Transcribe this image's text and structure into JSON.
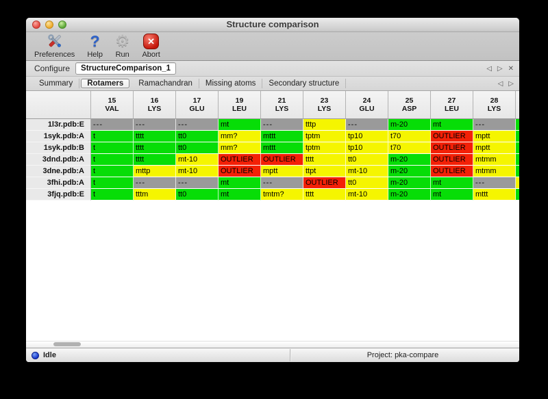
{
  "window": {
    "title": "Structure comparison"
  },
  "toolbar": {
    "items": [
      {
        "label": "Preferences",
        "icon": "tools-icon"
      },
      {
        "label": "Help",
        "icon": "help-icon"
      },
      {
        "label": "Run",
        "icon": "gear-icon"
      },
      {
        "label": "Abort",
        "icon": "abort-icon"
      }
    ]
  },
  "icons": {
    "back": "◁",
    "forward": "▷",
    "close": "✕",
    "gear": "⚙",
    "help": "?",
    "abort_x": "✕"
  },
  "configure": {
    "label": "Configure",
    "value": "StructureComparison_1"
  },
  "tabs": {
    "selected": "Rotamers",
    "items": [
      {
        "label": "Summary"
      },
      {
        "label": "Rotamers"
      },
      {
        "label": "Ramachandran"
      },
      {
        "label": "Missing atoms"
      },
      {
        "label": "Secondary structure"
      }
    ]
  },
  "colors": {
    "ok": "#07dd07",
    "warn": "#f5f500",
    "out": "#f32007",
    "na": "#9a9a9a"
  },
  "table": {
    "columns": [
      {
        "num": "15",
        "res": "VAL"
      },
      {
        "num": "16",
        "res": "LYS"
      },
      {
        "num": "17",
        "res": "GLU"
      },
      {
        "num": "19",
        "res": "LEU"
      },
      {
        "num": "21",
        "res": "LYS"
      },
      {
        "num": "23",
        "res": "LYS"
      },
      {
        "num": "24",
        "res": "GLU"
      },
      {
        "num": "25",
        "res": "ASP"
      },
      {
        "num": "27",
        "res": "LEU"
      },
      {
        "num": "28",
        "res": "LYS"
      }
    ],
    "rows": [
      {
        "name": "1l3r.pdb:E",
        "cells": [
          [
            "---",
            "na"
          ],
          [
            "---",
            "na"
          ],
          [
            "---",
            "na"
          ],
          [
            "mt",
            "ok"
          ],
          [
            "---",
            "na"
          ],
          [
            "tttp",
            "warn"
          ],
          [
            "---",
            "na"
          ],
          [
            "m-20",
            "ok"
          ],
          [
            "mt",
            "ok"
          ],
          [
            "---",
            "na"
          ]
        ],
        "extra": "ok"
      },
      {
        "name": "1syk.pdb:A",
        "cells": [
          [
            "t",
            "ok"
          ],
          [
            "tttt",
            "ok"
          ],
          [
            "tt0",
            "ok"
          ],
          [
            "mm?",
            "warn"
          ],
          [
            "mttt",
            "ok"
          ],
          [
            "tptm",
            "warn"
          ],
          [
            "tp10",
            "warn"
          ],
          [
            "t70",
            "warn"
          ],
          [
            "OUTLIER",
            "out"
          ],
          [
            "mptt",
            "warn"
          ]
        ],
        "extra": "ok"
      },
      {
        "name": "1syk.pdb:B",
        "cells": [
          [
            "t",
            "ok"
          ],
          [
            "tttt",
            "ok"
          ],
          [
            "tt0",
            "ok"
          ],
          [
            "mm?",
            "warn"
          ],
          [
            "mttt",
            "ok"
          ],
          [
            "tptm",
            "warn"
          ],
          [
            "tp10",
            "warn"
          ],
          [
            "t70",
            "warn"
          ],
          [
            "OUTLIER",
            "out"
          ],
          [
            "mptt",
            "warn"
          ]
        ],
        "extra": "ok"
      },
      {
        "name": "3dnd.pdb:A",
        "cells": [
          [
            "t",
            "ok"
          ],
          [
            "tttt",
            "ok"
          ],
          [
            "mt-10",
            "warn"
          ],
          [
            "OUTLIER",
            "out"
          ],
          [
            "OUTLIER",
            "out"
          ],
          [
            "tttt",
            "warn"
          ],
          [
            "tt0",
            "warn"
          ],
          [
            "m-20",
            "ok"
          ],
          [
            "OUTLIER",
            "out"
          ],
          [
            "mtmm",
            "warn"
          ]
        ],
        "extra": "ok"
      },
      {
        "name": "3dne.pdb:A",
        "cells": [
          [
            "t",
            "ok"
          ],
          [
            "mttp",
            "warn"
          ],
          [
            "mt-10",
            "warn"
          ],
          [
            "OUTLIER",
            "out"
          ],
          [
            "mptt",
            "warn"
          ],
          [
            "ttpt",
            "warn"
          ],
          [
            "mt-10",
            "warn"
          ],
          [
            "m-20",
            "ok"
          ],
          [
            "OUTLIER",
            "out"
          ],
          [
            "mtmm",
            "warn"
          ]
        ],
        "extra": "ok"
      },
      {
        "name": "3fhi.pdb:A",
        "cells": [
          [
            "t",
            "ok"
          ],
          [
            "---",
            "na"
          ],
          [
            "---",
            "na"
          ],
          [
            "mt",
            "ok"
          ],
          [
            "---",
            "na"
          ],
          [
            "OUTLIER",
            "out"
          ],
          [
            "tt0",
            "warn"
          ],
          [
            "m-20",
            "ok"
          ],
          [
            "mt",
            "ok"
          ],
          [
            "---",
            "na"
          ]
        ],
        "extra": "warn"
      },
      {
        "name": "3fjq.pdb:E",
        "cells": [
          [
            "t",
            "ok"
          ],
          [
            "tttm",
            "warn"
          ],
          [
            "tt0",
            "ok"
          ],
          [
            "mt",
            "ok"
          ],
          [
            "tmtm?",
            "warn"
          ],
          [
            "tttt",
            "warn"
          ],
          [
            "mt-10",
            "warn"
          ],
          [
            "m-20",
            "ok"
          ],
          [
            "mt",
            "ok"
          ],
          [
            "mttt",
            "warn"
          ]
        ],
        "extra": "ok"
      }
    ]
  },
  "statusbar": {
    "status": "Idle",
    "project": "Project: pka-compare"
  }
}
